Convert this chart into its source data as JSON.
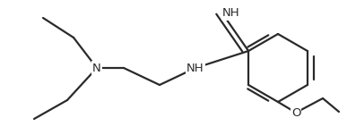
{
  "bg_color": "#ffffff",
  "line_color": "#2a2a2a",
  "line_width": 1.6,
  "figsize": [
    3.87,
    1.51
  ],
  "dpi": 100,
  "xlim": [
    -0.05,
    1.05
  ],
  "ylim": [
    0.0,
    1.0
  ],
  "font_size": 9.5
}
